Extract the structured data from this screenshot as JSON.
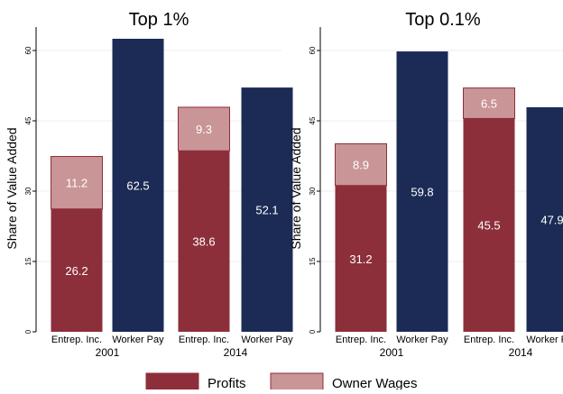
{
  "chart_data": [
    {
      "type": "bar",
      "stacked": true,
      "title": "Top 1%",
      "ylabel": "Share of Value Added",
      "ylim": [
        0,
        65
      ],
      "yticks": [
        0,
        15,
        30,
        45,
        60
      ],
      "grid": true,
      "groups": [
        {
          "year": "2001",
          "bars": [
            {
              "label": "Entrep. Inc.",
              "segments": [
                {
                  "series": "Profits",
                  "value": 26.2,
                  "label": "26.2"
                },
                {
                  "series": "Owner Wages",
                  "value": 11.2,
                  "label": "11.2"
                }
              ]
            },
            {
              "label": "Worker Pay",
              "segments": [
                {
                  "series": "Worker Pay",
                  "value": 62.5,
                  "label": "62.5"
                }
              ]
            }
          ]
        },
        {
          "year": "2014",
          "bars": [
            {
              "label": "Entrep. Inc.",
              "segments": [
                {
                  "series": "Profits",
                  "value": 38.6,
                  "label": "38.6"
                },
                {
                  "series": "Owner Wages",
                  "value": 9.3,
                  "label": "9.3"
                }
              ]
            },
            {
              "label": "Worker Pay",
              "segments": [
                {
                  "series": "Worker Pay",
                  "value": 52.1,
                  "label": "52.1"
                }
              ]
            }
          ]
        }
      ]
    },
    {
      "type": "bar",
      "stacked": true,
      "title": "Top 0.1%",
      "ylabel": "Share of Value Added",
      "ylim": [
        0,
        65
      ],
      "yticks": [
        0,
        15,
        30,
        45,
        60
      ],
      "grid": true,
      "groups": [
        {
          "year": "2001",
          "bars": [
            {
              "label": "Entrep. Inc.",
              "segments": [
                {
                  "series": "Profits",
                  "value": 31.2,
                  "label": "31.2"
                },
                {
                  "series": "Owner Wages",
                  "value": 8.9,
                  "label": "8.9"
                }
              ]
            },
            {
              "label": "Worker Pay",
              "segments": [
                {
                  "series": "Worker Pay",
                  "value": 59.8,
                  "label": "59.8"
                }
              ]
            }
          ]
        },
        {
          "year": "2014",
          "bars": [
            {
              "label": "Entrep. Inc.",
              "segments": [
                {
                  "series": "Profits",
                  "value": 45.5,
                  "label": "45.5"
                },
                {
                  "series": "Owner Wages",
                  "value": 6.5,
                  "label": "6.5"
                }
              ]
            },
            {
              "label": "Worker Pay",
              "segments": [
                {
                  "series": "Worker Pay",
                  "value": 47.9,
                  "label": "47.9"
                }
              ]
            }
          ]
        }
      ]
    }
  ],
  "legend": {
    "placement": "bottom",
    "items": [
      {
        "label": "Profits",
        "color": "#8d2f3a"
      },
      {
        "label": "Owner Wages",
        "color": "#c99597"
      }
    ]
  },
  "colors": {
    "Profits": "#8d2f3a",
    "Owner Wages": "#c99597",
    "Worker Pay": "#1c2b55"
  }
}
